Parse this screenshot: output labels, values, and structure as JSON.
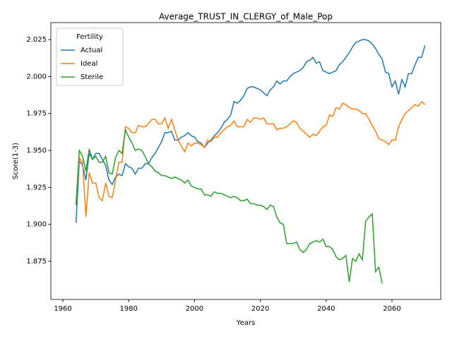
{
  "chart_data": {
    "type": "line",
    "title": "Average_TRUST_IN_CLERGY_of_Male_Pop",
    "x_label": "Years",
    "y_label": "Score(1-3)",
    "legend_title": "Fertility",
    "legend": "upper left",
    "grid": false,
    "x": [
      1964,
      1965,
      1966,
      1967,
      1968,
      1969,
      1970,
      1971,
      1972,
      1973,
      1974,
      1975,
      1976,
      1977,
      1978,
      1979,
      1980,
      1981,
      1982,
      1983,
      1984,
      1985,
      1986,
      1987,
      1988,
      1989,
      1990,
      1991,
      1992,
      1993,
      1994,
      1995,
      1996,
      1997,
      1998,
      1999,
      2000,
      2001,
      2002,
      2003,
      2004,
      2005,
      2006,
      2007,
      2008,
      2009,
      2010,
      2011,
      2012,
      2013,
      2014,
      2015,
      2016,
      2017,
      2018,
      2019,
      2020,
      2021,
      2022,
      2023,
      2024,
      2025,
      2026,
      2027,
      2028,
      2029,
      2030,
      2031,
      2032,
      2033,
      2034,
      2035,
      2036,
      2037,
      2038,
      2039,
      2040,
      2041,
      2042,
      2043,
      2044,
      2045,
      2046,
      2047,
      2048,
      2049,
      2050,
      2051,
      2052,
      2053,
      2054,
      2055,
      2056,
      2057,
      2058,
      2059,
      2060,
      2061,
      2062,
      2063,
      2064,
      2065,
      2066,
      2067,
      2068,
      2069,
      2070
    ],
    "series": [
      {
        "name": "Actual",
        "color": "#1f77b4",
        "values": [
          1.901,
          1.943,
          1.94,
          1.93,
          1.948,
          1.944,
          1.948,
          1.948,
          1.944,
          1.94,
          1.93,
          1.927,
          1.932,
          1.934,
          1.933,
          1.941,
          1.939,
          1.938,
          1.934,
          1.938,
          1.938,
          1.941,
          1.941,
          1.945,
          1.948,
          1.952,
          1.956,
          1.962,
          1.962,
          1.963,
          1.957,
          1.957,
          1.959,
          1.96,
          1.962,
          1.96,
          1.959,
          1.956,
          1.955,
          1.952,
          1.955,
          1.957,
          1.96,
          1.962,
          1.965,
          1.969,
          1.971,
          1.974,
          1.983,
          1.982,
          1.984,
          1.987,
          1.992,
          1.993,
          1.993,
          1.992,
          1.991,
          1.989,
          1.987,
          1.991,
          1.993,
          1.997,
          1.995,
          1.997,
          1.997,
          2.0,
          2.002,
          2.003,
          2.004,
          2.006,
          2.01,
          2.011,
          2.013,
          2.009,
          2.01,
          2.004,
          2.003,
          2.002,
          2.003,
          2.004,
          2.008,
          2.01,
          2.013,
          2.016,
          2.02,
          2.023,
          2.024,
          2.025,
          2.025,
          2.024,
          2.022,
          2.019,
          2.015,
          2.012,
          2.003,
          2.002,
          1.993,
          1.997,
          1.988,
          1.998,
          1.993,
          2.002,
          2.002,
          2.008,
          2.013,
          2.013,
          2.021
        ]
      },
      {
        "name": "Ideal",
        "color": "#ff7f0e",
        "values": [
          1.914,
          1.945,
          1.942,
          1.905,
          1.935,
          1.928,
          1.928,
          1.918,
          1.916,
          1.928,
          1.919,
          1.918,
          1.93,
          1.942,
          1.942,
          1.966,
          1.965,
          1.962,
          1.962,
          1.967,
          1.966,
          1.966,
          1.968,
          1.971,
          1.971,
          1.968,
          1.968,
          1.972,
          1.965,
          1.971,
          1.964,
          1.957,
          1.953,
          1.949,
          1.955,
          1.953,
          1.955,
          1.955,
          1.954,
          1.952,
          1.957,
          1.956,
          1.959,
          1.959,
          1.962,
          1.964,
          1.966,
          1.967,
          1.97,
          1.966,
          1.966,
          1.966,
          1.971,
          1.969,
          1.972,
          1.972,
          1.971,
          1.972,
          1.968,
          1.968,
          1.968,
          1.964,
          1.965,
          1.965,
          1.966,
          1.968,
          1.97,
          1.969,
          1.965,
          1.963,
          1.961,
          1.959,
          1.961,
          1.96,
          1.963,
          1.966,
          1.967,
          1.974,
          1.973,
          1.979,
          1.978,
          1.982,
          1.981,
          1.979,
          1.978,
          1.978,
          1.977,
          1.975,
          1.975,
          1.971,
          1.967,
          1.963,
          1.958,
          1.957,
          1.956,
          1.954,
          1.957,
          1.957,
          1.966,
          1.971,
          1.975,
          1.977,
          1.979,
          1.981,
          1.98,
          1.983,
          1.981
        ]
      },
      {
        "name": "Sterile",
        "color": "#2ca02c",
        "values": [
          1.913,
          1.95,
          1.946,
          1.936,
          1.951,
          1.944,
          1.946,
          1.942,
          1.942,
          1.946,
          1.935,
          1.934,
          1.945,
          1.95,
          1.948,
          1.964,
          1.959,
          1.955,
          1.95,
          1.951,
          1.95,
          1.946,
          1.941,
          1.939,
          1.936,
          1.935,
          1.933,
          1.933,
          1.932,
          1.931,
          1.932,
          1.931,
          1.93,
          1.928,
          1.93,
          1.926,
          1.925,
          1.924,
          1.924,
          1.92,
          1.92,
          1.919,
          1.922,
          1.921,
          1.921,
          1.92,
          1.919,
          1.918,
          1.919,
          1.918,
          1.916,
          1.916,
          1.917,
          1.914,
          1.914,
          1.913,
          1.913,
          1.912,
          1.91,
          1.913,
          1.912,
          1.905,
          1.901,
          1.9,
          1.887,
          1.887,
          1.887,
          1.888,
          1.883,
          1.881,
          1.883,
          1.887,
          1.888,
          1.889,
          1.888,
          1.89,
          1.885,
          1.885,
          1.883,
          1.878,
          1.876,
          1.877,
          1.879,
          1.861,
          1.877,
          1.875,
          1.88,
          1.876,
          1.902,
          1.905,
          1.907,
          1.868,
          1.871,
          1.86,
          null,
          null,
          null,
          null,
          null,
          null,
          null,
          null,
          null,
          null,
          null,
          null,
          null
        ]
      }
    ],
    "xlim": [
      1956.35,
      2074.8
    ],
    "xticks": [
      1960,
      1980,
      2000,
      2020,
      2040,
      2060
    ],
    "ylim": [
      1.8492,
      2.0365
    ],
    "yticks": [
      1.875,
      {
        "value": 1.9,
        "label": "1.900"
      },
      1.925,
      {
        "value": 1.95,
        "label": "1.950"
      },
      1.975,
      {
        "value": 2.0,
        "label": "2.000"
      },
      2.025
    ]
  }
}
